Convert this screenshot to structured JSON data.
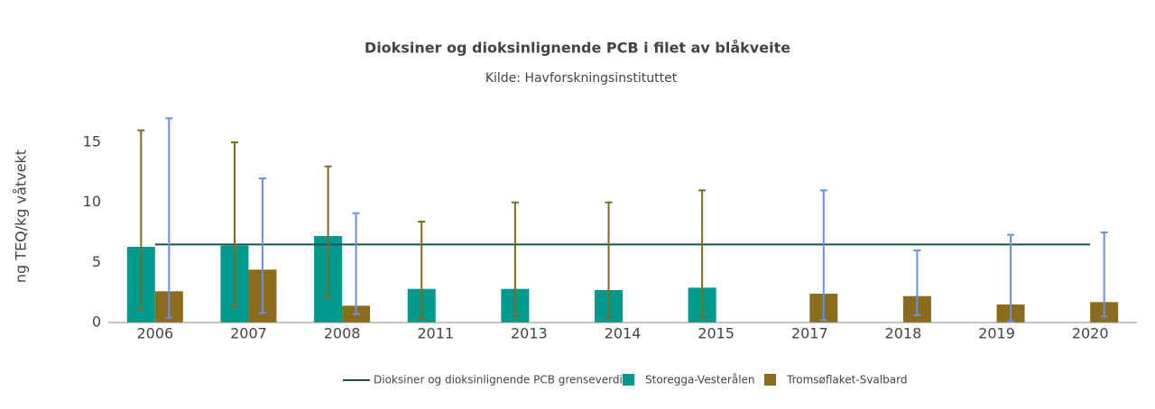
{
  "chart_data": {
    "type": "bar",
    "title": "Dioksiner og dioksinlignende PCB i filet av blåkveite",
    "subtitle": "Kilde: Havforskningsinstituttet",
    "y_label": "ng TEQ/kg våtvekt",
    "categories": [
      "2006",
      "2007",
      "2008",
      "2011",
      "2013",
      "2014",
      "2015",
      "2017",
      "2018",
      "2019",
      "2020"
    ],
    "series": [
      {
        "name": "Dioksiner og dioksinlignende PCB grenseverdi",
        "type": "line",
        "color": "#1e4f52",
        "values": [
          6.5,
          6.5,
          6.5,
          6.5,
          6.5,
          6.5,
          6.5,
          6.5,
          6.5,
          6.5,
          6.5
        ]
      },
      {
        "name": "Storegga-Vesterålen",
        "type": "bar",
        "color": "#00998e",
        "error_color": "#7b6c22",
        "values": [
          6.3,
          6.4,
          7.2,
          2.8,
          2.8,
          2.7,
          2.9,
          null,
          null,
          null,
          null
        ],
        "low": [
          1.1,
          1.3,
          2.1,
          0.3,
          0.5,
          0.4,
          0.4,
          null,
          null,
          null,
          null
        ],
        "high": [
          16,
          15,
          13,
          8.4,
          10,
          10,
          11,
          null,
          null,
          null,
          null
        ]
      },
      {
        "name": "Tromsøflaket-Svalbard",
        "type": "bar",
        "color": "#8a6c1c",
        "error_color": "#6b8ee6",
        "values": [
          2.6,
          4.4,
          1.4,
          null,
          null,
          null,
          null,
          2.4,
          2.2,
          1.5,
          1.7
        ],
        "low": [
          0.4,
          0.8,
          0.7,
          null,
          null,
          null,
          null,
          0.2,
          0.6,
          0.1,
          0.5
        ],
        "high": [
          17,
          12,
          9.1,
          null,
          null,
          null,
          null,
          11,
          6,
          7.3,
          7.5
        ]
      }
    ],
    "ylim": [
      0,
      18
    ],
    "yticks": [
      0,
      5,
      10,
      15
    ],
    "grid": false
  }
}
